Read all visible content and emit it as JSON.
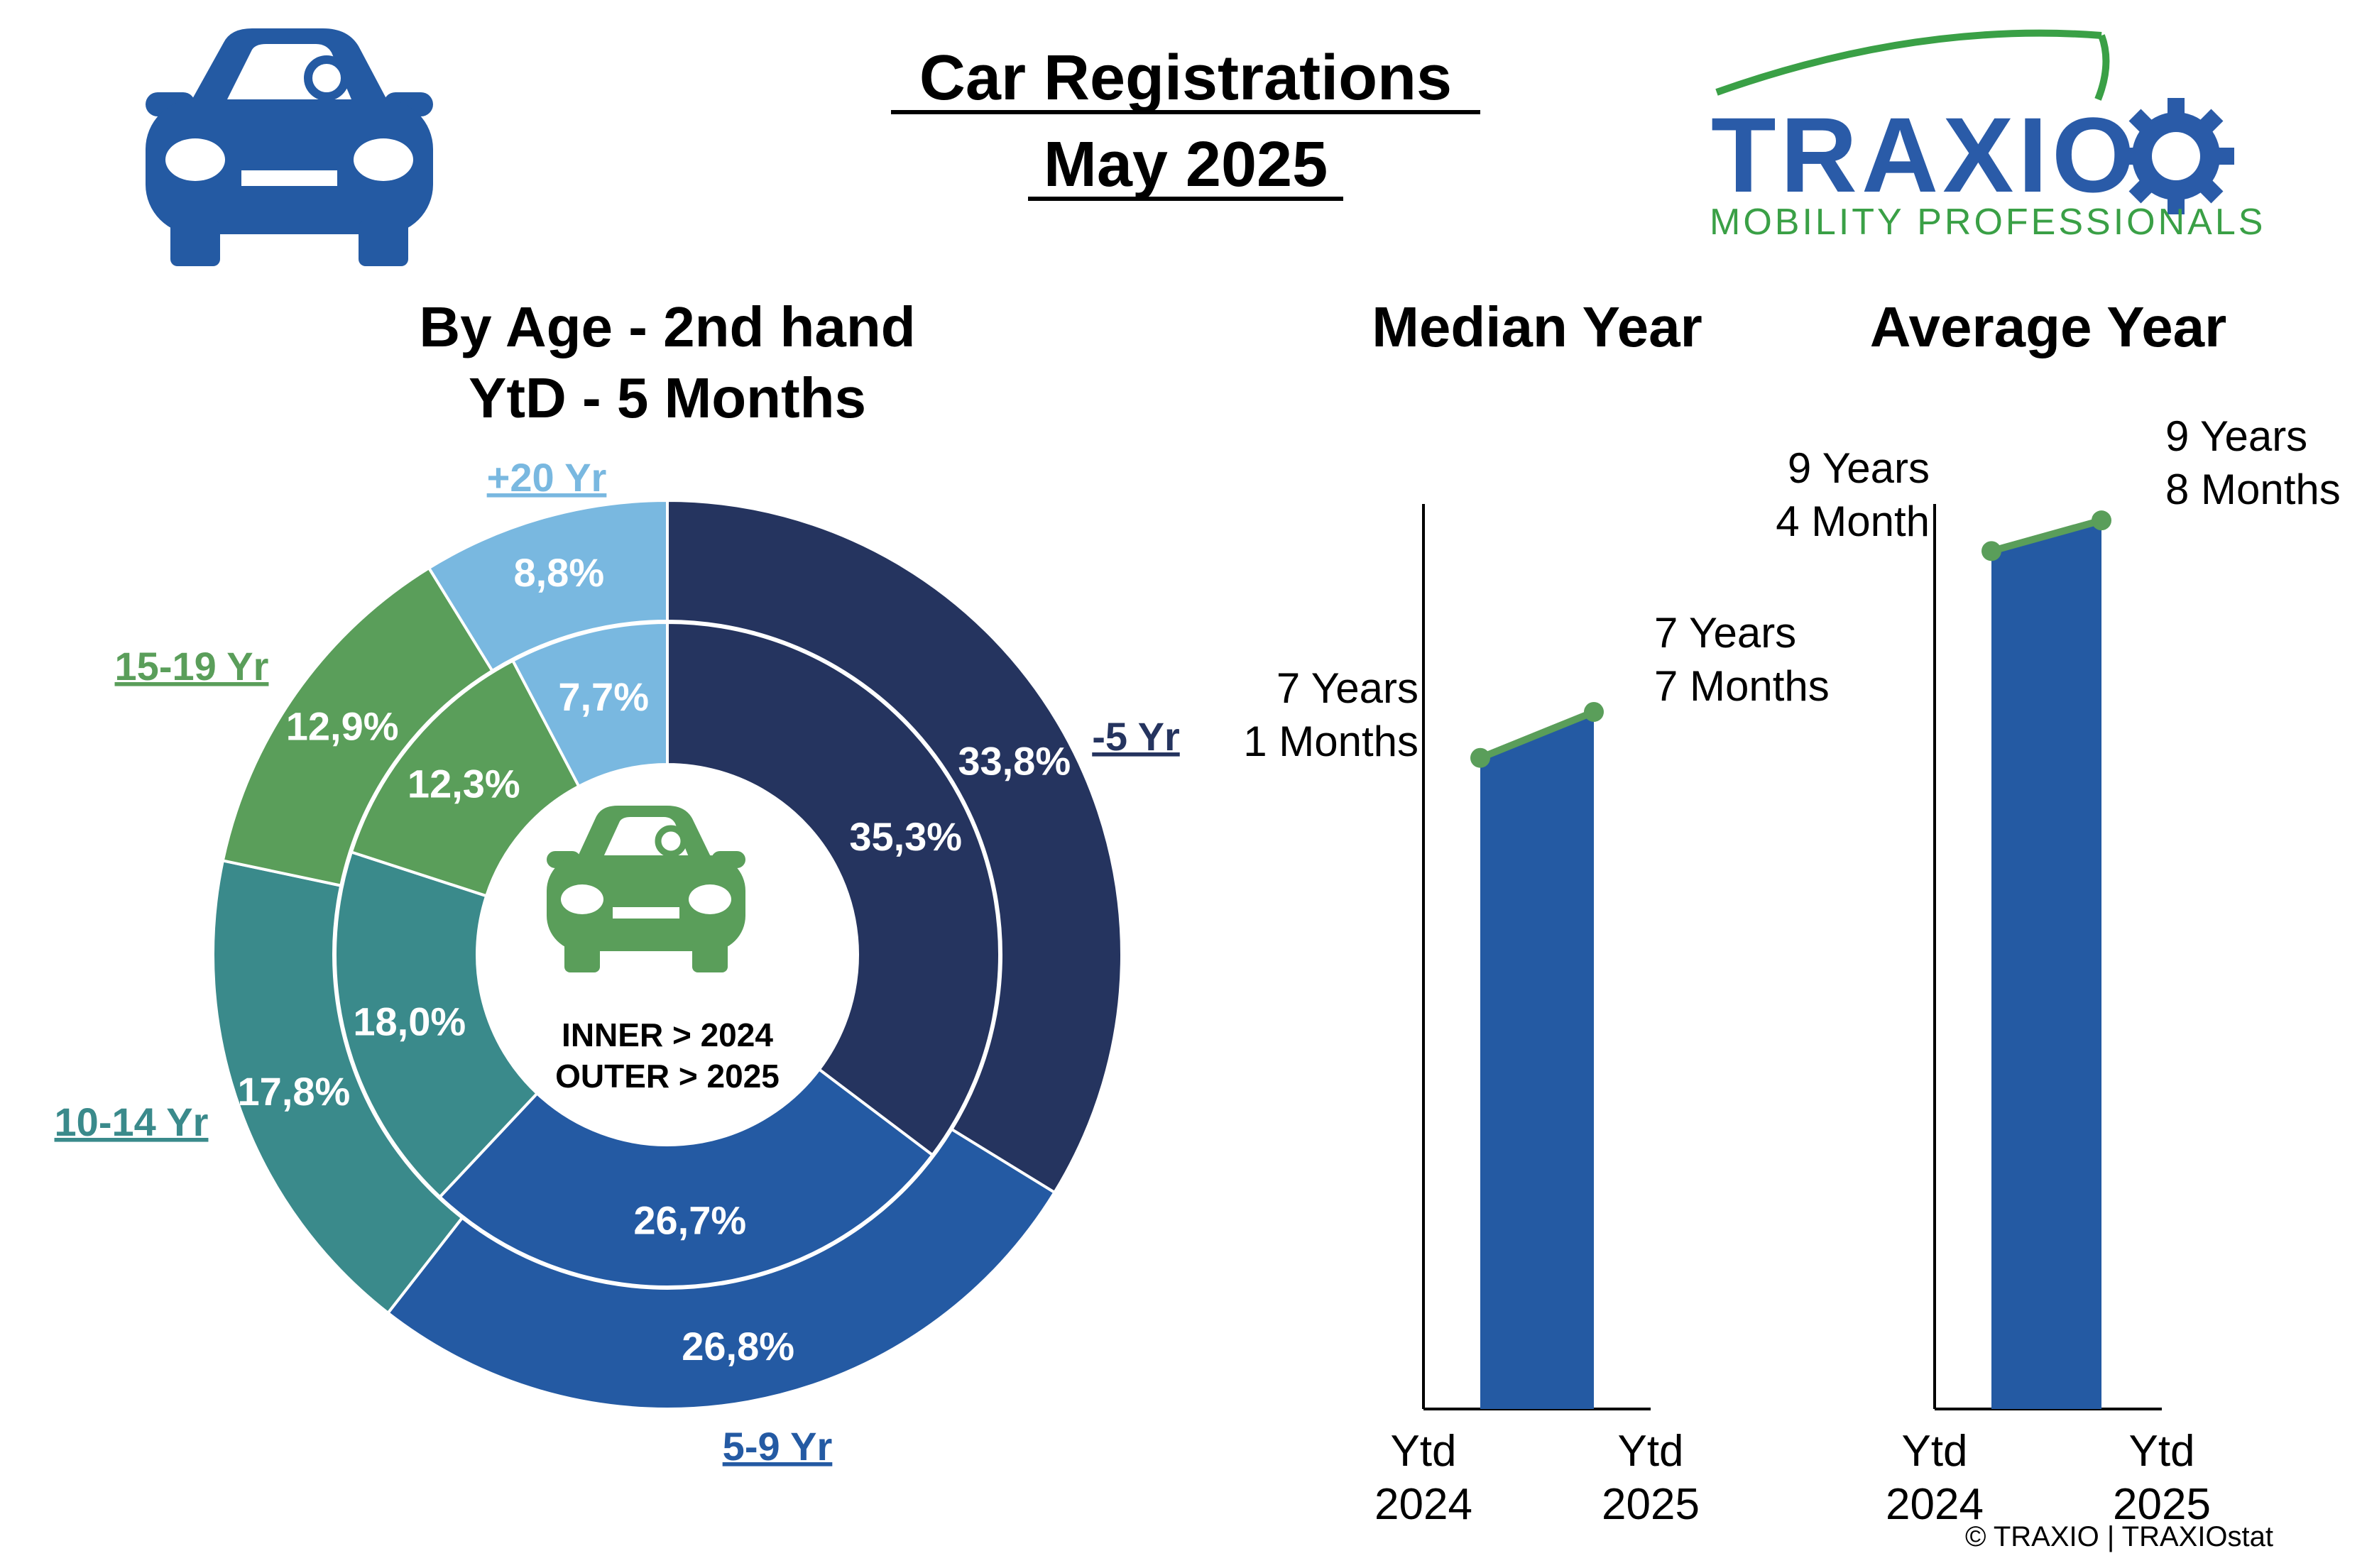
{
  "header": {
    "title_line1": "Car Registrations",
    "title_line2": "May 2025"
  },
  "logo": {
    "name": "TRAXIO",
    "tagline": "MOBILITY PROFESSIONALS"
  },
  "icons": [
    "car-icon",
    "gear-icon"
  ],
  "donut": {
    "title_line1": "By Age - 2nd hand",
    "title_line2": "YtD - 5 Months",
    "center_line1": "INNER > 2024",
    "center_line2": "OUTER > 2025"
  },
  "median_chart": {
    "title": "Median Year"
  },
  "average_chart": {
    "title": "Average Year"
  },
  "footer": {
    "copyright": "© TRAXIO | TRAXIOstat"
  },
  "colors": {
    "under5": "#25345f",
    "y5_9": "#245aa3",
    "y10_14": "#3a8a8b",
    "y15_19": "#5a9e5a",
    "over20": "#79b8e0",
    "bar": "#245aa3",
    "line": "#5a9e5a",
    "car_icon": "#245aa3",
    "center_car": "#5a9e5a"
  },
  "chart_data": [
    {
      "type": "pie",
      "title": "By Age - 2nd hand YtD - 5 Months",
      "categories": [
        "-5 Yr",
        "5-9 Yr",
        "10-14 Yr",
        "15-19 Yr",
        "+20 Yr"
      ],
      "series": [
        {
          "name": "OUTER > 2025",
          "values": [
            33.8,
            26.8,
            17.8,
            12.9,
            8.8
          ],
          "labels": [
            "33,8%",
            "26,8%",
            "17,8%",
            "12,9%",
            "8,8%"
          ]
        },
        {
          "name": "INNER > 2024",
          "values": [
            35.3,
            26.7,
            18.0,
            12.3,
            7.7
          ],
          "labels": [
            "35,3%",
            "26,7%",
            "18,0%",
            "12,3%",
            "7,7%"
          ]
        }
      ]
    },
    {
      "type": "bar",
      "title": "Median Year",
      "categories": [
        "Ytd 2024",
        "Ytd 2025"
      ],
      "tick_labels": [
        [
          "Ytd",
          "2024"
        ],
        [
          "Ytd",
          "2025"
        ]
      ],
      "values": [
        7.0833,
        7.5833
      ],
      "value_labels": [
        [
          "7 Years",
          "1 Months"
        ],
        [
          "7 Years",
          "7 Months"
        ]
      ],
      "ylim": [
        0,
        10
      ]
    },
    {
      "type": "bar",
      "title": "Average Year",
      "categories": [
        "Ytd 2024",
        "Ytd 2025"
      ],
      "tick_labels": [
        [
          "Ytd",
          "2024"
        ],
        [
          "Ytd",
          "2025"
        ]
      ],
      "values": [
        9.3333,
        9.6667
      ],
      "value_labels": [
        [
          "9 Years",
          "4 Month"
        ],
        [
          "9 Years",
          "8 Months"
        ]
      ],
      "ylim": [
        0,
        10
      ]
    }
  ]
}
